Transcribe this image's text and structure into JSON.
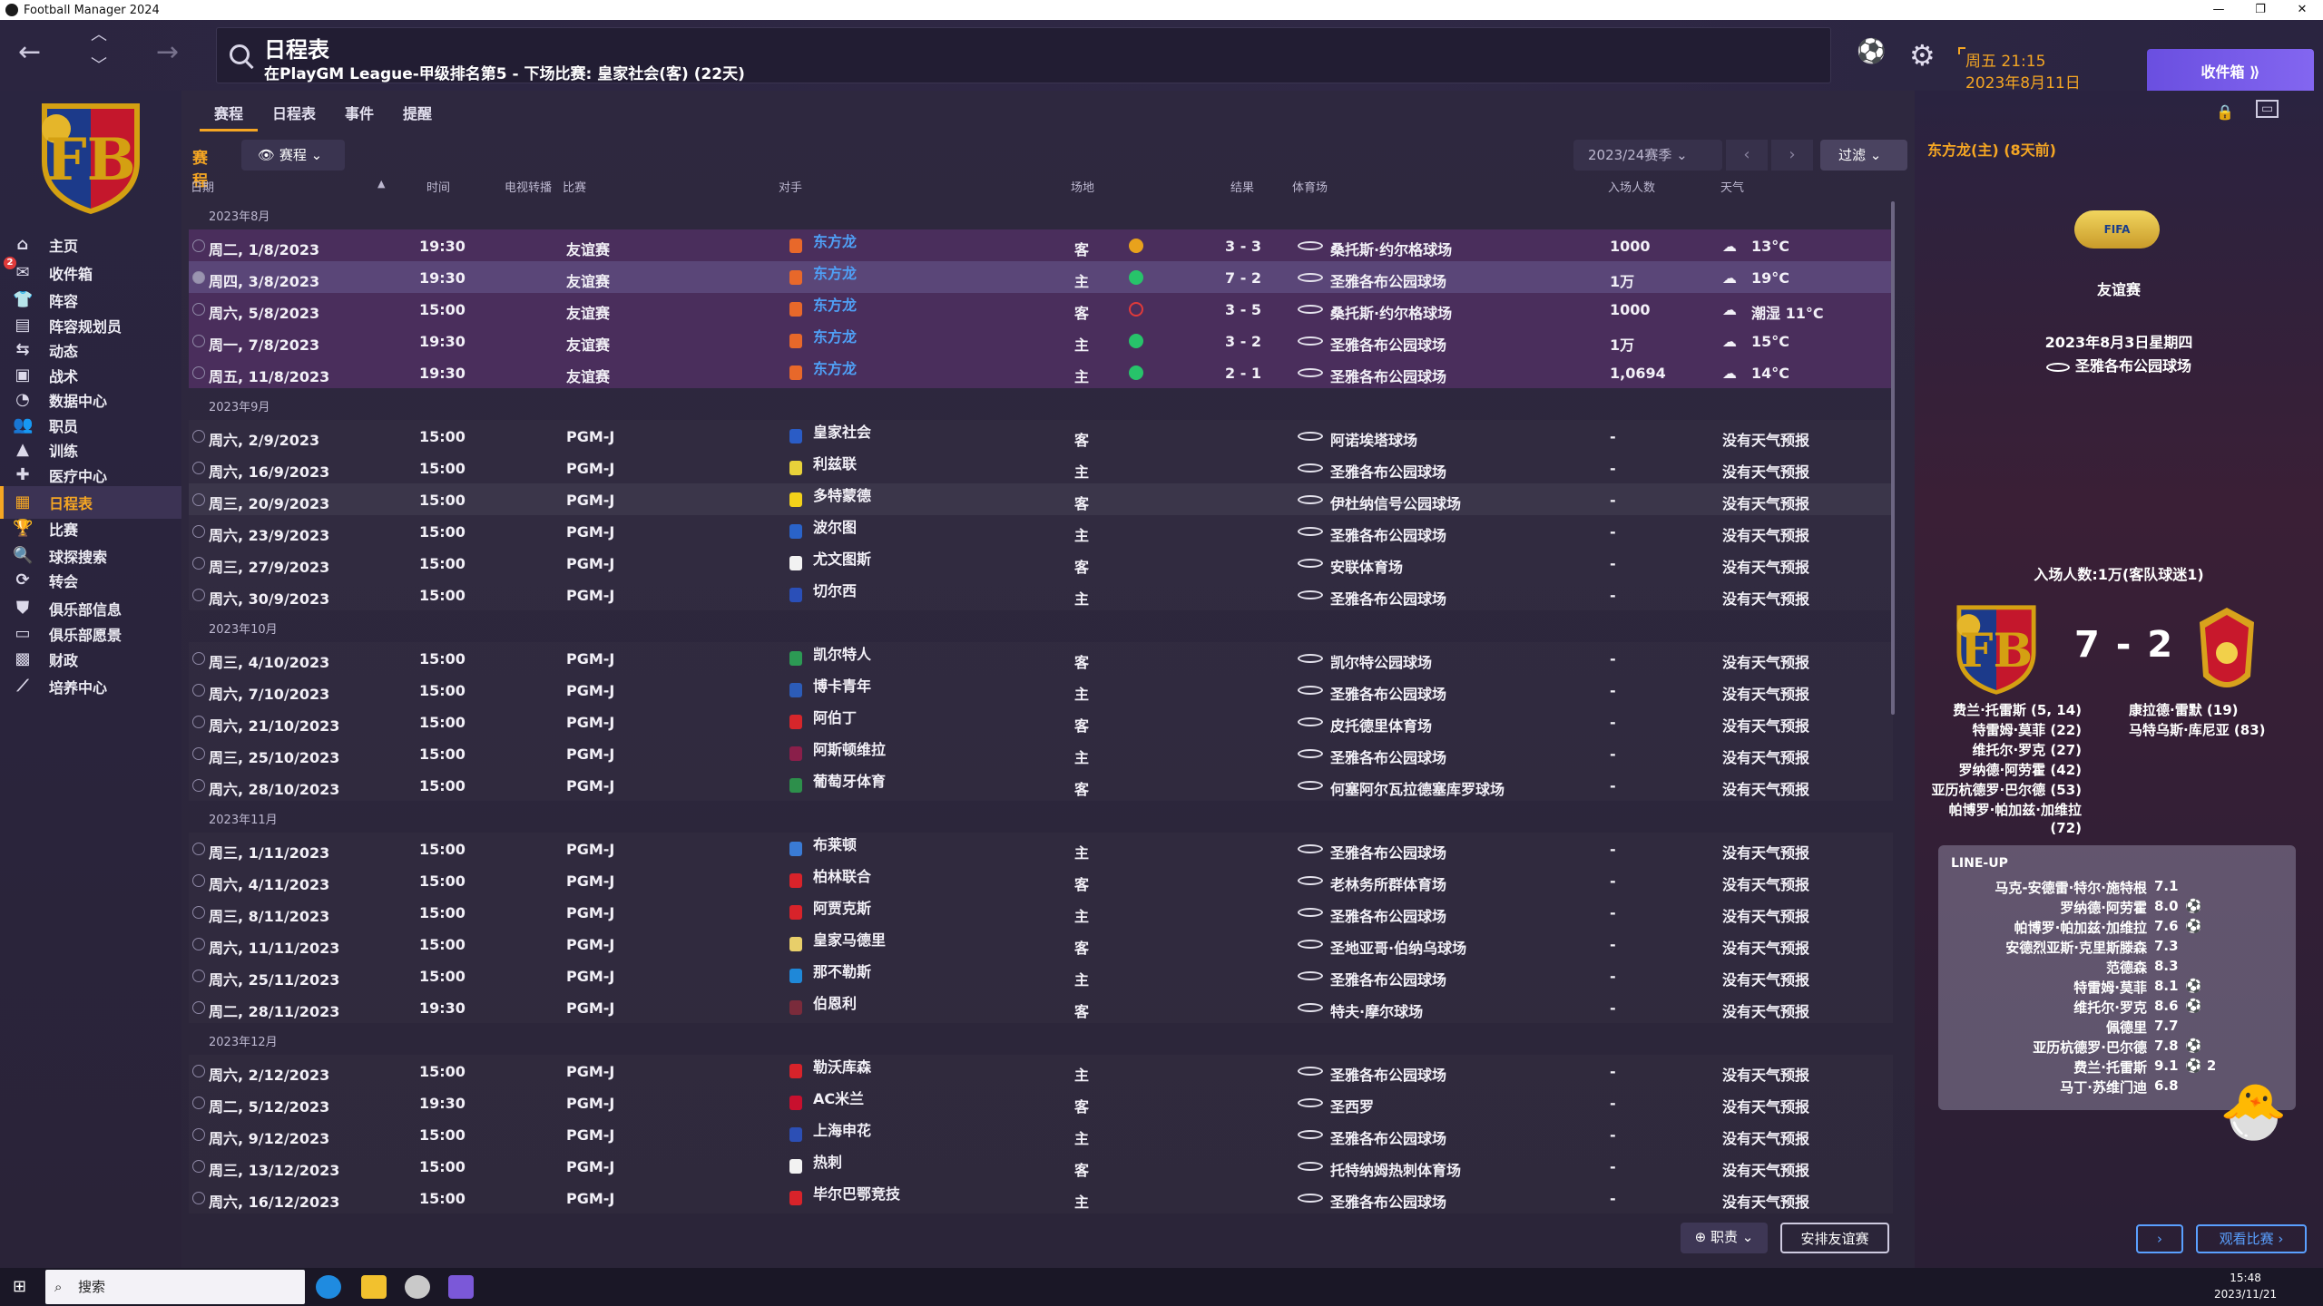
{
  "window": {
    "title": "Football Manager 2024",
    "controls": [
      "—",
      "❐",
      "✕"
    ]
  },
  "search": {
    "title": "日程表",
    "subtitle": "在PlayGM League-甲级排名第5 - 下场比赛: 皇家社会(客) (22天)"
  },
  "datetime": {
    "line1": "周五 21:15",
    "line2": "2023年8月11日"
  },
  "inbox_button": "收件箱 ⟫",
  "sidebar": {
    "items": [
      {
        "label": "主页",
        "icon": "home-icon",
        "glyph": "⌂"
      },
      {
        "label": "收件箱",
        "icon": "inbox-icon",
        "glyph": "✉",
        "badge": "2"
      },
      {
        "label": "阵容",
        "icon": "squad-icon",
        "glyph": "👕"
      },
      {
        "label": "阵容规划员",
        "icon": "planner-icon",
        "glyph": "▤"
      },
      {
        "label": "动态",
        "icon": "dynamics-icon",
        "glyph": "⇆"
      },
      {
        "label": "战术",
        "icon": "tactics-icon",
        "glyph": "▣"
      },
      {
        "label": "数据中心",
        "icon": "data-icon",
        "glyph": "◔"
      },
      {
        "label": "职员",
        "icon": "staff-icon",
        "glyph": "👥"
      },
      {
        "label": "训练",
        "icon": "training-icon",
        "glyph": "▲"
      },
      {
        "label": "医疗中心",
        "icon": "medical-icon",
        "glyph": "✚"
      },
      {
        "label": "日程表",
        "icon": "schedule-icon",
        "glyph": "▦",
        "active": true
      },
      {
        "label": "比赛",
        "icon": "trophy-icon",
        "glyph": "🏆"
      },
      {
        "label": "球探搜索",
        "icon": "scouting-icon",
        "glyph": "🔍"
      },
      {
        "label": "转会",
        "icon": "transfers-icon",
        "glyph": "⟳"
      },
      {
        "label": "俱乐部信息",
        "icon": "club-info-icon",
        "glyph": "⛊"
      },
      {
        "label": "俱乐部愿景",
        "icon": "vision-icon",
        "glyph": "▭"
      },
      {
        "label": "财政",
        "icon": "finance-icon",
        "glyph": "▩"
      },
      {
        "label": "培养中心",
        "icon": "development-icon",
        "glyph": "⟋"
      }
    ]
  },
  "tabs": [
    "赛程",
    "日程表",
    "事件",
    "提醒"
  ],
  "subheader": {
    "label": "赛程",
    "view": "赛程"
  },
  "season_select": "2023/24赛季",
  "filter_button": "过滤",
  "columns": [
    "日期",
    "时间",
    "电视转播",
    "比赛",
    "对手",
    "场地",
    "结果",
    "体育场",
    "入场人数",
    "天气"
  ],
  "months": {
    "aug": "2023年8月",
    "sep": "2023年9月",
    "oct": "2023年10月",
    "nov": "2023年11月",
    "dec": "2023年12月"
  },
  "fixtures": [
    {
      "m": "aug"
    },
    {
      "date": "周二, 1/8/2023",
      "time": "19:30",
      "comp": "友谊赛",
      "opp": "东方龙",
      "oppColor": "#e8682a",
      "oppBlue": true,
      "venue": "客",
      "dot": "#e8a21c",
      "result": "3 - 3",
      "stadium": "桑托斯·约尔格球场",
      "att": "1000",
      "weather": "13°C",
      "wicon": "☁",
      "style": "purple"
    },
    {
      "date": "周四, 3/8/2023",
      "time": "19:30",
      "comp": "友谊赛",
      "opp": "东方龙",
      "oppColor": "#e8682a",
      "oppBlue": true,
      "venue": "主",
      "dot": "#27c36a",
      "result": "7 - 2",
      "stadium": "圣雅各布公园球场",
      "att": "1万",
      "weather": "19°C",
      "wicon": "☁",
      "style": "hl"
    },
    {
      "date": "周六, 5/8/2023",
      "time": "15:00",
      "comp": "友谊赛",
      "opp": "东方龙",
      "oppColor": "#e8682a",
      "oppBlue": true,
      "venue": "客",
      "dot": "ring",
      "result": "3 - 5",
      "stadium": "桑托斯·约尔格球场",
      "att": "1000",
      "weather": "潮湿 11°C",
      "wicon": "☁",
      "style": "purple"
    },
    {
      "date": "周一, 7/8/2023",
      "time": "19:30",
      "comp": "友谊赛",
      "opp": "东方龙",
      "oppColor": "#e8682a",
      "oppBlue": true,
      "venue": "主",
      "dot": "#27c36a",
      "result": "3 - 2",
      "stadium": "圣雅各布公园球场",
      "att": "1万",
      "weather": "15°C",
      "wicon": "☁",
      "style": "purple"
    },
    {
      "date": "周五, 11/8/2023",
      "time": "19:30",
      "comp": "友谊赛",
      "opp": "东方龙",
      "oppColor": "#e8682a",
      "oppBlue": true,
      "venue": "主",
      "dot": "#27c36a",
      "result": "2 - 1",
      "stadium": "圣雅各布公园球场",
      "att": "1,0694",
      "weather": "14°C",
      "wicon": "☁",
      "style": "purple"
    },
    {
      "m": "sep"
    },
    {
      "date": "周六, 2/9/2023",
      "time": "15:00",
      "comp": "PGM-J",
      "opp": "皇家社会",
      "oppColor": "#2a5cc6",
      "venue": "客",
      "stadium": "阿诺埃塔球场",
      "att": "-",
      "weather": "没有天气预报"
    },
    {
      "date": "周六, 16/9/2023",
      "time": "15:00",
      "comp": "PGM-J",
      "opp": "利兹联",
      "oppColor": "#e8d23a",
      "venue": "主",
      "stadium": "圣雅各布公园球场",
      "att": "-",
      "weather": "没有天气预报"
    },
    {
      "date": "周三, 20/9/2023",
      "time": "15:00",
      "comp": "PGM-J",
      "opp": "多特蒙德",
      "oppColor": "#f3d21a",
      "venue": "客",
      "stadium": "伊杜纳信号公园球场",
      "att": "-",
      "weather": "没有天气预报",
      "style": "dim"
    },
    {
      "date": "周六, 23/9/2023",
      "time": "15:00",
      "comp": "PGM-J",
      "opp": "波尔图",
      "oppColor": "#2a63c9",
      "venue": "主",
      "stadium": "圣雅各布公园球场",
      "att": "-",
      "weather": "没有天气预报"
    },
    {
      "date": "周三, 27/9/2023",
      "time": "15:00",
      "comp": "PGM-J",
      "opp": "尤文图斯",
      "oppColor": "#f2f2f2",
      "venue": "客",
      "stadium": "安联体育场",
      "att": "-",
      "weather": "没有天气预报"
    },
    {
      "date": "周六, 30/9/2023",
      "time": "15:00",
      "comp": "PGM-J",
      "opp": "切尔西",
      "oppColor": "#2a4fb8",
      "venue": "主",
      "stadium": "圣雅各布公园球场",
      "att": "-",
      "weather": "没有天气预报"
    },
    {
      "m": "oct"
    },
    {
      "date": "周三, 4/10/2023",
      "time": "15:00",
      "comp": "PGM-J",
      "opp": "凯尔特人",
      "oppColor": "#2c9a54",
      "venue": "客",
      "stadium": "凯尔特公园球场",
      "att": "-",
      "weather": "没有天气预报"
    },
    {
      "date": "周六, 7/10/2023",
      "time": "15:00",
      "comp": "PGM-J",
      "opp": "博卡青年",
      "oppColor": "#2c5cb8",
      "venue": "主",
      "stadium": "圣雅各布公园球场",
      "att": "-",
      "weather": "没有天气预报"
    },
    {
      "date": "周六, 21/10/2023",
      "time": "15:00",
      "comp": "PGM-J",
      "opp": "阿伯丁",
      "oppColor": "#d6262b",
      "venue": "客",
      "stadium": "皮托德里体育场",
      "att": "-",
      "weather": "没有天气预报"
    },
    {
      "date": "周三, 25/10/2023",
      "time": "15:00",
      "comp": "PGM-J",
      "opp": "阿斯顿维拉",
      "oppColor": "#8a1f4a",
      "venue": "主",
      "stadium": "圣雅各布公园球场",
      "att": "-",
      "weather": "没有天气预报"
    },
    {
      "date": "周六, 28/10/2023",
      "time": "15:00",
      "comp": "PGM-J",
      "opp": "葡萄牙体育",
      "oppColor": "#2d8f4b",
      "venue": "客",
      "stadium": "何塞阿尔瓦拉德塞库罗球场",
      "att": "-",
      "weather": "没有天气预报"
    },
    {
      "m": "nov"
    },
    {
      "date": "周三, 1/11/2023",
      "time": "15:00",
      "comp": "PGM-J",
      "opp": "布莱顿",
      "oppColor": "#3a7bd5",
      "venue": "主",
      "stadium": "圣雅各布公园球场",
      "att": "-",
      "weather": "没有天气预报"
    },
    {
      "date": "周六, 4/11/2023",
      "time": "15:00",
      "comp": "PGM-J",
      "opp": "柏林联合",
      "oppColor": "#d8232a",
      "venue": "客",
      "stadium": "老林务所群体育场",
      "att": "-",
      "weather": "没有天气预报"
    },
    {
      "date": "周三, 8/11/2023",
      "time": "15:00",
      "comp": "PGM-J",
      "opp": "阿贾克斯",
      "oppColor": "#d8232a",
      "venue": "主",
      "stadium": "圣雅各布公园球场",
      "att": "-",
      "weather": "没有天气预报"
    },
    {
      "date": "周六, 11/11/2023",
      "time": "15:00",
      "comp": "PGM-J",
      "opp": "皇家马德里",
      "oppColor": "#e8cf6a",
      "venue": "客",
      "stadium": "圣地亚哥·伯纳乌球场",
      "att": "-",
      "weather": "没有天气预报"
    },
    {
      "date": "周六, 25/11/2023",
      "time": "15:00",
      "comp": "PGM-J",
      "opp": "那不勒斯",
      "oppColor": "#1f88d8",
      "venue": "主",
      "stadium": "圣雅各布公园球场",
      "att": "-",
      "weather": "没有天气预报"
    },
    {
      "date": "周二, 28/11/2023",
      "time": "19:30",
      "comp": "PGM-J",
      "opp": "伯恩利",
      "oppColor": "#7a2b3b",
      "venue": "客",
      "stadium": "特夫·摩尔球场",
      "att": "-",
      "weather": "没有天气预报"
    },
    {
      "m": "dec"
    },
    {
      "date": "周六, 2/12/2023",
      "time": "15:00",
      "comp": "PGM-J",
      "opp": "勒沃库森",
      "oppColor": "#d8232a",
      "venue": "主",
      "stadium": "圣雅各布公园球场",
      "att": "-",
      "weather": "没有天气预报"
    },
    {
      "date": "周二, 5/12/2023",
      "time": "19:30",
      "comp": "PGM-J",
      "opp": "AC米兰",
      "oppColor": "#c8102e",
      "venue": "客",
      "stadium": "圣西罗",
      "att": "-",
      "weather": "没有天气预报"
    },
    {
      "date": "周六, 9/12/2023",
      "time": "15:00",
      "comp": "PGM-J",
      "opp": "上海申花",
      "oppColor": "#2c4fb5",
      "venue": "主",
      "stadium": "圣雅各布公园球场",
      "att": "-",
      "weather": "没有天气预报"
    },
    {
      "date": "周三, 13/12/2023",
      "time": "15:00",
      "comp": "PGM-J",
      "opp": "热刺",
      "oppColor": "#f2f2f2",
      "venue": "客",
      "stadium": "托特纳姆热刺体育场",
      "att": "-",
      "weather": "没有天气预报"
    },
    {
      "date": "周六, 16/12/2023",
      "time": "15:00",
      "comp": "PGM-J",
      "opp": "毕尔巴鄂竞技",
      "oppColor": "#d8232a",
      "venue": "主",
      "stadium": "圣雅各布公园球场",
      "att": "-",
      "weather": "没有天气预报"
    }
  ],
  "bottom": {
    "staff_btn": "职责",
    "arrange_btn": "安排友谊赛"
  },
  "panel": {
    "header": "东方龙(主) (8天前)",
    "fifa": "FIFA",
    "comp": "友谊赛",
    "date": "2023年8月3日星期四",
    "stadium": "圣雅各布公园球场",
    "attendance": "入场人数:1万(客队球迷1)",
    "score": "7 - 2",
    "home_scorers": [
      "费兰·托雷斯 (5, 14)",
      "特雷姆·莫菲 (22)",
      "维托尔·罗克 (27)",
      "罗纳德·阿劳霍 (42)",
      "亚历杭德罗·巴尔德 (53)",
      "帕博罗·帕加兹·加维拉",
      "(72)"
    ],
    "away_scorers": [
      "康拉德·雷默 (19)",
      "马特乌斯·库尼亚 (83)"
    ],
    "lineup_title": "LINE-UP",
    "lineup": [
      {
        "name": "马克-安德雷·特尔·施特根",
        "rating": "7.1",
        "extra": ""
      },
      {
        "name": "罗纳德·阿劳霍",
        "rating": "8.0",
        "extra": "⚽"
      },
      {
        "name": "帕博罗·帕加兹·加维拉",
        "rating": "7.6",
        "extra": "⚽"
      },
      {
        "name": "安德烈亚斯·克里斯滕森",
        "rating": "7.3",
        "extra": ""
      },
      {
        "name": "范德森",
        "rating": "8.3",
        "extra": ""
      },
      {
        "name": "特雷姆·莫菲",
        "rating": "8.1",
        "extra": "⚽"
      },
      {
        "name": "维托尔·罗克",
        "rating": "8.6",
        "extra": "⚽"
      },
      {
        "name": "佩德里",
        "rating": "7.7",
        "extra": ""
      },
      {
        "name": "亚历杭德罗·巴尔德",
        "rating": "7.8",
        "extra": "⚽"
      },
      {
        "name": "费兰·托雷斯",
        "rating": "9.1",
        "extra": "⚽ 2"
      },
      {
        "name": "马丁·苏维门迪",
        "rating": "6.8",
        "extra": ""
      }
    ],
    "next_btn": "›",
    "watch_btn": "观看比赛 ›"
  },
  "taskbar": {
    "search": "搜索",
    "time": "15:48",
    "date": "2023/11/21"
  },
  "colors": {
    "accent": "#f5a623",
    "win": "#27c36a",
    "draw": "#e8a21c",
    "loss": "#e03a3a",
    "link": "#4f9ff5"
  }
}
